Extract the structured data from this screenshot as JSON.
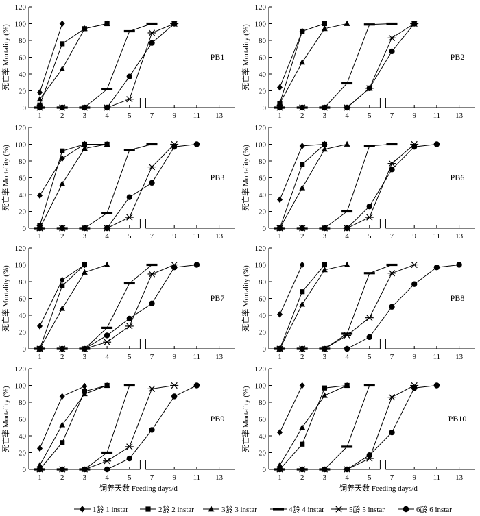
{
  "chart_data": {
    "type": "line",
    "ylabel": "死亡率 Mortality (%)",
    "xlabel": "饲养天数 Feeding days/d",
    "y_ticks": [
      "0",
      "20",
      "40",
      "60",
      "80",
      "100",
      "120"
    ],
    "ylim": [
      0,
      120
    ],
    "x_ticks": [
      "1",
      "2",
      "3",
      "4",
      "5",
      "7",
      "9",
      "11",
      "13"
    ],
    "x_positions": [
      1,
      2,
      3,
      4,
      5,
      6,
      7,
      8,
      9
    ],
    "legend": [
      {
        "name": "1龄 1 instar",
        "marker": "diamond"
      },
      {
        "name": "2龄 2 instar",
        "marker": "square"
      },
      {
        "name": "3龄 3 instar",
        "marker": "triangle"
      },
      {
        "name": "4龄 4 instar",
        "marker": "dash"
      },
      {
        "name": "5龄 5 instar",
        "marker": "star"
      },
      {
        "name": "6龄 6 instar",
        "marker": "circle"
      }
    ],
    "panels": [
      {
        "label": "PB1",
        "series": [
          [
            [
              1,
              18
            ],
            [
              2,
              100
            ]
          ],
          [
            [
              1,
              3
            ],
            [
              2,
              76
            ],
            [
              3,
              94
            ],
            [
              4,
              100
            ]
          ],
          [
            [
              1,
              10
            ],
            [
              2,
              46
            ],
            [
              3,
              94
            ],
            [
              4,
              100
            ]
          ],
          [
            [
              1,
              0
            ],
            [
              2,
              0
            ],
            [
              3,
              0
            ],
            [
              4,
              22
            ],
            [
              5,
              91
            ],
            [
              6,
              100
            ]
          ],
          [
            [
              1,
              0
            ],
            [
              2,
              0
            ],
            [
              3,
              0
            ],
            [
              4,
              0
            ],
            [
              5,
              10
            ],
            [
              6,
              89
            ],
            [
              7,
              100
            ]
          ],
          [
            [
              1,
              0
            ],
            [
              2,
              0
            ],
            [
              3,
              0
            ],
            [
              4,
              0
            ],
            [
              5,
              37
            ],
            [
              6,
              77
            ],
            [
              7,
              100
            ]
          ]
        ]
      },
      {
        "label": "PB2",
        "series": [
          [
            [
              1,
              24
            ],
            [
              2,
              91
            ]
          ],
          [
            [
              1,
              5
            ],
            [
              2,
              91
            ],
            [
              3,
              100
            ]
          ],
          [
            [
              1,
              5
            ],
            [
              2,
              54
            ],
            [
              3,
              94
            ],
            [
              4,
              100
            ]
          ],
          [
            [
              1,
              0
            ],
            [
              2,
              0
            ],
            [
              3,
              0
            ],
            [
              4,
              29
            ],
            [
              5,
              99
            ],
            [
              6,
              100
            ]
          ],
          [
            [
              1,
              0
            ],
            [
              2,
              0
            ],
            [
              3,
              0
            ],
            [
              4,
              0
            ],
            [
              5,
              23
            ],
            [
              6,
              83
            ],
            [
              7,
              100
            ]
          ],
          [
            [
              1,
              0
            ],
            [
              2,
              0
            ],
            [
              3,
              0
            ],
            [
              4,
              0
            ],
            [
              5,
              23
            ],
            [
              6,
              67
            ],
            [
              7,
              100
            ]
          ]
        ]
      },
      {
        "label": "PB3",
        "series": [
          [
            [
              1,
              39
            ],
            [
              2,
              83
            ],
            [
              3,
              100
            ]
          ],
          [
            [
              1,
              3
            ],
            [
              2,
              92
            ],
            [
              3,
              100
            ],
            [
              4,
              100
            ]
          ],
          [
            [
              1,
              0
            ],
            [
              2,
              53
            ],
            [
              3,
              95
            ],
            [
              4,
              100
            ]
          ],
          [
            [
              1,
              0
            ],
            [
              2,
              0
            ],
            [
              3,
              0
            ],
            [
              4,
              18
            ],
            [
              5,
              93
            ],
            [
              6,
              100
            ]
          ],
          [
            [
              1,
              0
            ],
            [
              2,
              0
            ],
            [
              3,
              0
            ],
            [
              4,
              0
            ],
            [
              5,
              13
            ],
            [
              6,
              73
            ],
            [
              7,
              100
            ]
          ],
          [
            [
              1,
              0
            ],
            [
              2,
              0
            ],
            [
              3,
              0
            ],
            [
              4,
              0
            ],
            [
              5,
              37
            ],
            [
              6,
              54
            ],
            [
              7,
              97
            ],
            [
              8,
              100
            ]
          ]
        ]
      },
      {
        "label": "PB6",
        "series": [
          [
            [
              1,
              34
            ],
            [
              2,
              98
            ],
            [
              3,
              100
            ]
          ],
          [
            [
              1,
              0
            ],
            [
              2,
              76
            ],
            [
              3,
              100
            ]
          ],
          [
            [
              1,
              0
            ],
            [
              2,
              48
            ],
            [
              3,
              94
            ],
            [
              4,
              100
            ]
          ],
          [
            [
              1,
              0
            ],
            [
              2,
              0
            ],
            [
              3,
              0
            ],
            [
              4,
              20
            ],
            [
              5,
              98
            ],
            [
              6,
              100
            ]
          ],
          [
            [
              1,
              0
            ],
            [
              2,
              0
            ],
            [
              3,
              0
            ],
            [
              4,
              0
            ],
            [
              5,
              13
            ],
            [
              6,
              77
            ],
            [
              7,
              100
            ]
          ],
          [
            [
              1,
              0
            ],
            [
              2,
              0
            ],
            [
              3,
              0
            ],
            [
              4,
              0
            ],
            [
              5,
              26
            ],
            [
              6,
              70
            ],
            [
              7,
              97
            ],
            [
              8,
              100
            ]
          ]
        ]
      },
      {
        "label": "PB7",
        "series": [
          [
            [
              1,
              27
            ],
            [
              2,
              82
            ],
            [
              3,
              100
            ]
          ],
          [
            [
              1,
              0
            ],
            [
              2,
              75
            ],
            [
              3,
              100
            ]
          ],
          [
            [
              1,
              0
            ],
            [
              2,
              48
            ],
            [
              3,
              91
            ],
            [
              4,
              100
            ]
          ],
          [
            [
              1,
              0
            ],
            [
              2,
              0
            ],
            [
              3,
              0
            ],
            [
              4,
              25
            ],
            [
              5,
              78
            ],
            [
              6,
              100
            ]
          ],
          [
            [
              1,
              0
            ],
            [
              2,
              0
            ],
            [
              3,
              0
            ],
            [
              4,
              8
            ],
            [
              5,
              27
            ],
            [
              6,
              89
            ],
            [
              7,
              100
            ]
          ],
          [
            [
              1,
              0
            ],
            [
              2,
              0
            ],
            [
              3,
              0
            ],
            [
              4,
              16
            ],
            [
              5,
              36
            ],
            [
              6,
              54
            ],
            [
              7,
              97
            ],
            [
              8,
              100
            ]
          ]
        ]
      },
      {
        "label": "PB8",
        "series": [
          [
            [
              1,
              41
            ],
            [
              2,
              100
            ]
          ],
          [
            [
              1,
              0
            ],
            [
              2,
              68
            ],
            [
              3,
              100
            ]
          ],
          [
            [
              1,
              0
            ],
            [
              2,
              53
            ],
            [
              3,
              94
            ],
            [
              4,
              100
            ]
          ],
          [
            [
              1,
              0
            ],
            [
              2,
              0
            ],
            [
              3,
              0
            ],
            [
              4,
              18
            ],
            [
              5,
              90
            ],
            [
              6,
              100
            ]
          ],
          [
            [
              1,
              0
            ],
            [
              2,
              0
            ],
            [
              3,
              0
            ],
            [
              4,
              16
            ],
            [
              5,
              37
            ],
            [
              6,
              90
            ],
            [
              7,
              100
            ]
          ],
          [
            [
              1,
              0
            ],
            [
              2,
              0
            ],
            [
              3,
              0
            ],
            [
              4,
              0
            ],
            [
              5,
              14
            ],
            [
              6,
              50
            ],
            [
              7,
              77
            ],
            [
              8,
              97
            ],
            [
              9,
              100
            ]
          ]
        ]
      },
      {
        "label": "PB9",
        "series": [
          [
            [
              1,
              25
            ],
            [
              2,
              87
            ],
            [
              3,
              99
            ]
          ],
          [
            [
              1,
              0
            ],
            [
              2,
              32
            ],
            [
              3,
              93
            ],
            [
              4,
              100
            ]
          ],
          [
            [
              1,
              5
            ],
            [
              2,
              53
            ],
            [
              3,
              90
            ],
            [
              4,
              100
            ]
          ],
          [
            [
              1,
              0
            ],
            [
              2,
              0
            ],
            [
              3,
              0
            ],
            [
              4,
              20
            ],
            [
              5,
              100
            ]
          ],
          [
            [
              1,
              0
            ],
            [
              2,
              0
            ],
            [
              3,
              0
            ],
            [
              4,
              10
            ],
            [
              5,
              27
            ],
            [
              6,
              96
            ],
            [
              7,
              100
            ]
          ],
          [
            [
              1,
              0
            ],
            [
              2,
              0
            ],
            [
              3,
              0
            ],
            [
              4,
              0
            ],
            [
              5,
              13
            ],
            [
              6,
              47
            ],
            [
              7,
              87
            ],
            [
              8,
              100
            ]
          ]
        ]
      },
      {
        "label": "PB10",
        "series": [
          [
            [
              1,
              44
            ],
            [
              2,
              100
            ]
          ],
          [
            [
              1,
              0
            ],
            [
              2,
              30
            ],
            [
              3,
              97
            ],
            [
              4,
              100
            ]
          ],
          [
            [
              1,
              5
            ],
            [
              2,
              50
            ],
            [
              3,
              88
            ],
            [
              4,
              100
            ]
          ],
          [
            [
              1,
              0
            ],
            [
              2,
              0
            ],
            [
              3,
              0
            ],
            [
              4,
              27
            ],
            [
              5,
              100
            ]
          ],
          [
            [
              1,
              0
            ],
            [
              2,
              0
            ],
            [
              3,
              0
            ],
            [
              4,
              0
            ],
            [
              5,
              13
            ],
            [
              6,
              86
            ],
            [
              7,
              100
            ]
          ],
          [
            [
              1,
              0
            ],
            [
              2,
              0
            ],
            [
              3,
              0
            ],
            [
              4,
              0
            ],
            [
              5,
              17
            ],
            [
              6,
              44
            ],
            [
              7,
              97
            ],
            [
              8,
              100
            ]
          ]
        ]
      }
    ]
  }
}
